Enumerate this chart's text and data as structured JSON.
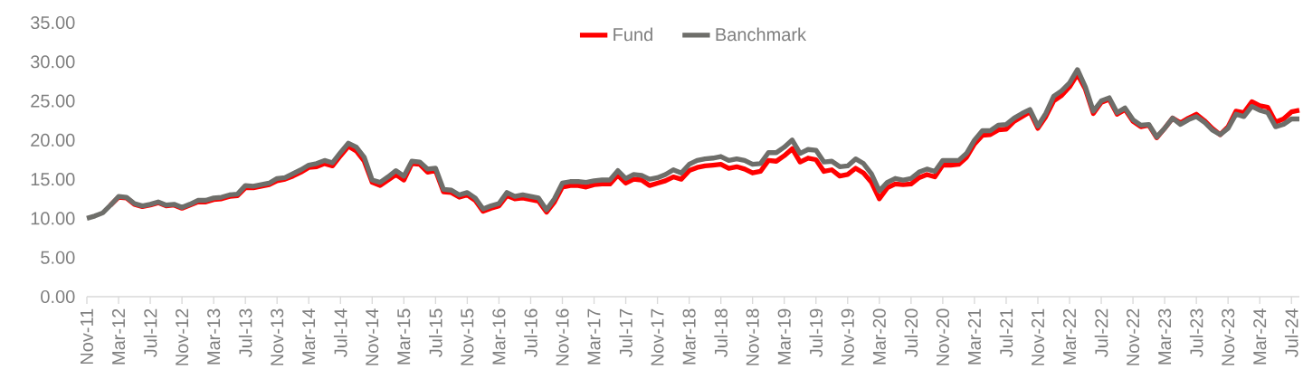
{
  "chart_data": {
    "type": "line",
    "categories": [
      "Nov-11",
      null,
      null,
      null,
      "Mar-12",
      null,
      null,
      null,
      "Jul-12",
      null,
      null,
      null,
      "Nov-12",
      null,
      null,
      null,
      "Mar-13",
      null,
      null,
      null,
      "Jul-13",
      null,
      null,
      null,
      "Nov-13",
      null,
      null,
      null,
      "Mar-14",
      null,
      null,
      null,
      "Jul-14",
      null,
      null,
      null,
      "Nov-14",
      null,
      null,
      null,
      "Mar-15",
      null,
      null,
      null,
      "Jul-15",
      null,
      null,
      null,
      "Nov-15",
      null,
      null,
      null,
      "Mar-16",
      null,
      null,
      null,
      "Jul-16",
      null,
      null,
      null,
      "Nov-16",
      null,
      null,
      null,
      "Mar-17",
      null,
      null,
      null,
      "Jul-17",
      null,
      null,
      null,
      "Nov-17",
      null,
      null,
      null,
      "Mar-18",
      null,
      null,
      null,
      "Jul-18",
      null,
      null,
      null,
      "Nov-18",
      null,
      null,
      null,
      "Mar-19",
      null,
      null,
      null,
      "Jul-19",
      null,
      null,
      null,
      "Nov-19",
      null,
      null,
      null,
      "Mar-20",
      null,
      null,
      null,
      "Jul-20",
      null,
      null,
      null,
      "Nov-20",
      null,
      null,
      null,
      "Mar-21",
      null,
      null,
      null,
      "Jul-21",
      null,
      null,
      null,
      "Nov-21",
      null,
      null,
      null,
      "Mar-22",
      null,
      null,
      null,
      "Jul-22",
      null,
      null,
      null,
      "Nov-22",
      null,
      null,
      null,
      "Mar-23",
      null,
      null,
      null,
      "Jul-23",
      null,
      null,
      null,
      "Nov-23",
      null,
      null,
      null,
      "Mar-24",
      null,
      null,
      null,
      "Jul-24",
      null
    ],
    "series": [
      {
        "name": "Fund",
        "color": "#ff0000",
        "values": [
          null,
          null,
          null,
          11.7,
          12.7,
          12.6,
          11.8,
          11.5,
          11.7,
          12.0,
          11.6,
          11.7,
          11.3,
          11.7,
          12.1,
          12.1,
          12.4,
          12.5,
          12.8,
          12.9,
          13.9,
          13.9,
          14.1,
          14.3,
          14.8,
          15.0,
          15.4,
          15.9,
          16.5,
          16.6,
          17.0,
          16.7,
          18.0,
          19.2,
          18.6,
          17.3,
          14.6,
          14.2,
          14.9,
          15.6,
          14.9,
          17.0,
          16.9,
          15.9,
          16.1,
          13.4,
          13.3,
          12.7,
          13.0,
          12.3,
          10.9,
          11.3,
          11.6,
          12.9,
          12.5,
          12.6,
          12.4,
          12.2,
          10.8,
          12.1,
          14.0,
          14.2,
          14.2,
          14.0,
          14.3,
          14.4,
          14.4,
          15.5,
          14.5,
          15.0,
          14.9,
          14.2,
          14.5,
          14.8,
          15.3,
          15.0,
          16.1,
          16.5,
          16.7,
          16.8,
          16.9,
          16.4,
          16.6,
          16.3,
          15.8,
          16.0,
          17.4,
          17.3,
          18.0,
          18.9,
          17.2,
          17.7,
          17.5,
          16.0,
          16.2,
          15.4,
          15.6,
          16.4,
          15.8,
          14.6,
          12.5,
          13.9,
          14.4,
          14.3,
          14.4,
          15.2,
          15.6,
          15.3,
          16.8,
          16.8,
          16.9,
          17.8,
          19.5,
          20.6,
          20.7,
          21.3,
          21.4,
          22.4,
          23.0,
          23.6,
          21.5,
          23.0,
          25.0,
          25.7,
          26.8,
          28.4,
          26.5,
          23.4,
          24.8,
          25.2,
          23.3,
          23.9,
          22.4,
          21.7,
          21.9,
          20.3,
          21.5,
          22.8,
          22.2,
          22.8,
          23.3,
          22.5,
          21.5,
          20.7,
          21.7,
          23.7,
          23.5,
          24.9,
          24.4,
          24.2,
          22.3,
          22.7,
          23.6,
          23.8
        ]
      },
      {
        "name": "Banchmark",
        "color": "#6e6e6a",
        "values": [
          10.0,
          10.3,
          10.7,
          11.7,
          12.8,
          12.7,
          11.9,
          11.6,
          11.8,
          12.1,
          11.7,
          11.8,
          11.4,
          11.8,
          12.3,
          12.3,
          12.6,
          12.7,
          13.0,
          13.1,
          14.2,
          14.1,
          14.3,
          14.5,
          15.1,
          15.2,
          15.7,
          16.2,
          16.8,
          17.0,
          17.4,
          17.1,
          18.4,
          19.6,
          19.1,
          17.8,
          14.9,
          14.6,
          15.3,
          16.1,
          15.4,
          17.3,
          17.2,
          16.3,
          16.4,
          13.7,
          13.6,
          13.0,
          13.3,
          12.6,
          11.2,
          11.6,
          11.9,
          13.3,
          12.8,
          13.0,
          12.8,
          12.6,
          11.1,
          12.5,
          14.5,
          14.7,
          14.7,
          14.6,
          14.8,
          14.9,
          14.9,
          16.1,
          15.1,
          15.6,
          15.5,
          15.0,
          15.2,
          15.6,
          16.2,
          15.8,
          16.9,
          17.4,
          17.6,
          17.7,
          17.9,
          17.4,
          17.6,
          17.4,
          16.9,
          17.0,
          18.4,
          18.4,
          19.1,
          20.0,
          18.3,
          18.8,
          18.7,
          17.2,
          17.3,
          16.6,
          16.7,
          17.6,
          17.0,
          15.7,
          13.5,
          14.6,
          15.1,
          14.9,
          15.1,
          15.9,
          16.3,
          16.0,
          17.4,
          17.4,
          17.4,
          18.3,
          20.0,
          21.2,
          21.2,
          21.9,
          22.0,
          22.8,
          23.4,
          23.9,
          21.8,
          23.4,
          25.6,
          26.3,
          27.3,
          29.0,
          26.8,
          23.7,
          25.0,
          25.4,
          23.5,
          24.1,
          22.6,
          21.9,
          22.0,
          20.4,
          21.5,
          22.8,
          22.0,
          22.6,
          23.0,
          22.3,
          21.3,
          20.7,
          21.5,
          23.3,
          23.0,
          24.3,
          23.8,
          23.5,
          21.7,
          22.0,
          22.7,
          22.7
        ]
      }
    ],
    "ylim": [
      0,
      35
    ],
    "yticks": [
      {
        "value": 0,
        "label": "0.00"
      },
      {
        "value": 5,
        "label": "5.00"
      },
      {
        "value": 10,
        "label": "10.00"
      },
      {
        "value": 15,
        "label": "15.00"
      },
      {
        "value": 20,
        "label": "20.00"
      },
      {
        "value": 25,
        "label": "25.00"
      },
      {
        "value": 30,
        "label": "30.00"
      },
      {
        "value": 35,
        "label": "35.00"
      }
    ],
    "grid": false,
    "legend": "top",
    "line_style": "solid"
  }
}
